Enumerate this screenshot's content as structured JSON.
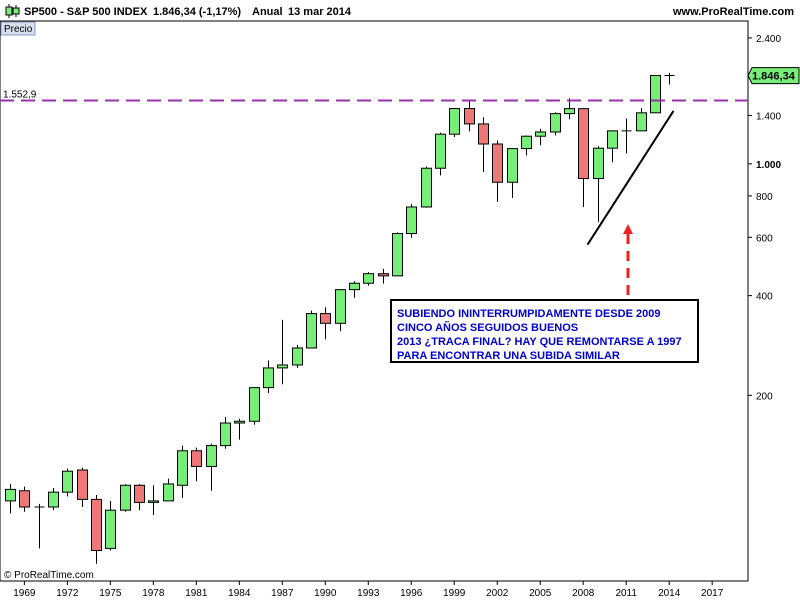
{
  "header": {
    "symbol": "SP500 - S&P 500 INDEX",
    "quote": "1.846,34 (-1,17%)",
    "period": "Anual",
    "date": "13 mar 2014",
    "site": "www.ProRealTime.com"
  },
  "panel_label": "Precio",
  "copyright": "© ProRealTime.com",
  "colors": {
    "up": "#77ee77",
    "down": "#ee7777",
    "background": "#ffffff",
    "resistance": "#9933aa",
    "annotation_text": "#0000cc",
    "arrow": "#ee2222"
  },
  "resistance": {
    "value": 1552.9,
    "label": "1.552,9"
  },
  "price_tag": {
    "value": 1846.34,
    "label": "1.846,34"
  },
  "annotation": {
    "lines": [
      "SUBIENDO ININTERRUMPIDAMENTE DESDE 2009",
      "CINCO AÑOS SEGUIDOS BUENOS",
      "2013 ¿TRACA FINAL? HAY QUE REMONTARSE A 1997",
      "PARA ENCONTRAR UNA SUBIDA SIMILAR"
    ]
  },
  "chart_data": {
    "type": "candlestick",
    "y_scale": "log",
    "ylim": [
      55,
      2700
    ],
    "xlim": [
      1967.3,
      2019.5
    ],
    "y_ticks": [
      {
        "value": 2400,
        "label": "2.400"
      },
      {
        "value": 1400,
        "label": "1.400"
      },
      {
        "value": 1000,
        "label": "1.000"
      },
      {
        "value": 800,
        "label": "800"
      },
      {
        "value": 600,
        "label": "600"
      },
      {
        "value": 400,
        "label": "400"
      },
      {
        "value": 200,
        "label": "200"
      }
    ],
    "x_ticks": [
      1969,
      1972,
      1975,
      1978,
      1981,
      1984,
      1987,
      1990,
      1993,
      1996,
      1999,
      2002,
      2005,
      2008,
      2011,
      2014,
      2017
    ],
    "candles": [
      {
        "year": 1968,
        "open": 96,
        "high": 108,
        "low": 88,
        "close": 104
      },
      {
        "year": 1969,
        "open": 103,
        "high": 106,
        "low": 89,
        "close": 92
      },
      {
        "year": 1970,
        "open": 92,
        "high": 94,
        "low": 69,
        "close": 92
      },
      {
        "year": 1971,
        "open": 92,
        "high": 105,
        "low": 90,
        "close": 102
      },
      {
        "year": 1972,
        "open": 102,
        "high": 120,
        "low": 99,
        "close": 118
      },
      {
        "year": 1973,
        "open": 119,
        "high": 121,
        "low": 92,
        "close": 97
      },
      {
        "year": 1974,
        "open": 97,
        "high": 100,
        "low": 62,
        "close": 68
      },
      {
        "year": 1975,
        "open": 69,
        "high": 96,
        "low": 68,
        "close": 90
      },
      {
        "year": 1976,
        "open": 90,
        "high": 108,
        "low": 89,
        "close": 107
      },
      {
        "year": 1977,
        "open": 107,
        "high": 108,
        "low": 90,
        "close": 95
      },
      {
        "year": 1978,
        "open": 95,
        "high": 107,
        "low": 87,
        "close": 96
      },
      {
        "year": 1979,
        "open": 96,
        "high": 112,
        "low": 96,
        "close": 108
      },
      {
        "year": 1980,
        "open": 107,
        "high": 141,
        "low": 98,
        "close": 136
      },
      {
        "year": 1981,
        "open": 136,
        "high": 139,
        "low": 110,
        "close": 122
      },
      {
        "year": 1982,
        "open": 122,
        "high": 143,
        "low": 103,
        "close": 141
      },
      {
        "year": 1983,
        "open": 141,
        "high": 172,
        "low": 138,
        "close": 165
      },
      {
        "year": 1984,
        "open": 165,
        "high": 170,
        "low": 147,
        "close": 167
      },
      {
        "year": 1985,
        "open": 167,
        "high": 212,
        "low": 163,
        "close": 211
      },
      {
        "year": 1986,
        "open": 211,
        "high": 255,
        "low": 203,
        "close": 242
      },
      {
        "year": 1987,
        "open": 242,
        "high": 338,
        "low": 216,
        "close": 247
      },
      {
        "year": 1988,
        "open": 247,
        "high": 284,
        "low": 242,
        "close": 278
      },
      {
        "year": 1989,
        "open": 278,
        "high": 360,
        "low": 278,
        "close": 353
      },
      {
        "year": 1990,
        "open": 353,
        "high": 369,
        "low": 295,
        "close": 330
      },
      {
        "year": 1991,
        "open": 330,
        "high": 418,
        "low": 312,
        "close": 417
      },
      {
        "year": 1992,
        "open": 417,
        "high": 442,
        "low": 394,
        "close": 436
      },
      {
        "year": 1993,
        "open": 436,
        "high": 471,
        "low": 429,
        "close": 466
      },
      {
        "year": 1994,
        "open": 466,
        "high": 482,
        "low": 435,
        "close": 459
      },
      {
        "year": 1995,
        "open": 459,
        "high": 621,
        "low": 459,
        "close": 616
      },
      {
        "year": 1996,
        "open": 616,
        "high": 757,
        "low": 598,
        "close": 741
      },
      {
        "year": 1997,
        "open": 741,
        "high": 983,
        "low": 737,
        "close": 970
      },
      {
        "year": 1998,
        "open": 970,
        "high": 1242,
        "low": 923,
        "close": 1229
      },
      {
        "year": 1999,
        "open": 1229,
        "high": 1474,
        "low": 1205,
        "close": 1469
      },
      {
        "year": 2000,
        "open": 1469,
        "high": 1553,
        "low": 1254,
        "close": 1320
      },
      {
        "year": 2001,
        "open": 1320,
        "high": 1383,
        "low": 945,
        "close": 1148
      },
      {
        "year": 2002,
        "open": 1148,
        "high": 1176,
        "low": 768,
        "close": 880
      },
      {
        "year": 2003,
        "open": 880,
        "high": 1112,
        "low": 789,
        "close": 1112
      },
      {
        "year": 2004,
        "open": 1112,
        "high": 1217,
        "low": 1060,
        "close": 1212
      },
      {
        "year": 2005,
        "open": 1212,
        "high": 1275,
        "low": 1137,
        "close": 1248
      },
      {
        "year": 2006,
        "open": 1248,
        "high": 1431,
        "low": 1219,
        "close": 1418
      },
      {
        "year": 2007,
        "open": 1418,
        "high": 1576,
        "low": 1364,
        "close": 1468
      },
      {
        "year": 2008,
        "open": 1468,
        "high": 1471,
        "low": 741,
        "close": 903
      },
      {
        "year": 2009,
        "open": 903,
        "high": 1130,
        "low": 667,
        "close": 1115
      },
      {
        "year": 2010,
        "open": 1115,
        "high": 1263,
        "low": 1011,
        "close": 1258
      },
      {
        "year": 2011,
        "open": 1258,
        "high": 1371,
        "low": 1075,
        "close": 1258
      },
      {
        "year": 2012,
        "open": 1258,
        "high": 1475,
        "low": 1258,
        "close": 1426
      },
      {
        "year": 2013,
        "open": 1426,
        "high": 1849,
        "low": 1426,
        "close": 1848
      },
      {
        "year": 2014,
        "open": 1848,
        "high": 1883,
        "low": 1737,
        "close": 1846
      }
    ],
    "trendline": [
      {
        "year": 2008.3,
        "value": 570
      },
      {
        "year": 2014.3,
        "value": 1445
      }
    ]
  }
}
